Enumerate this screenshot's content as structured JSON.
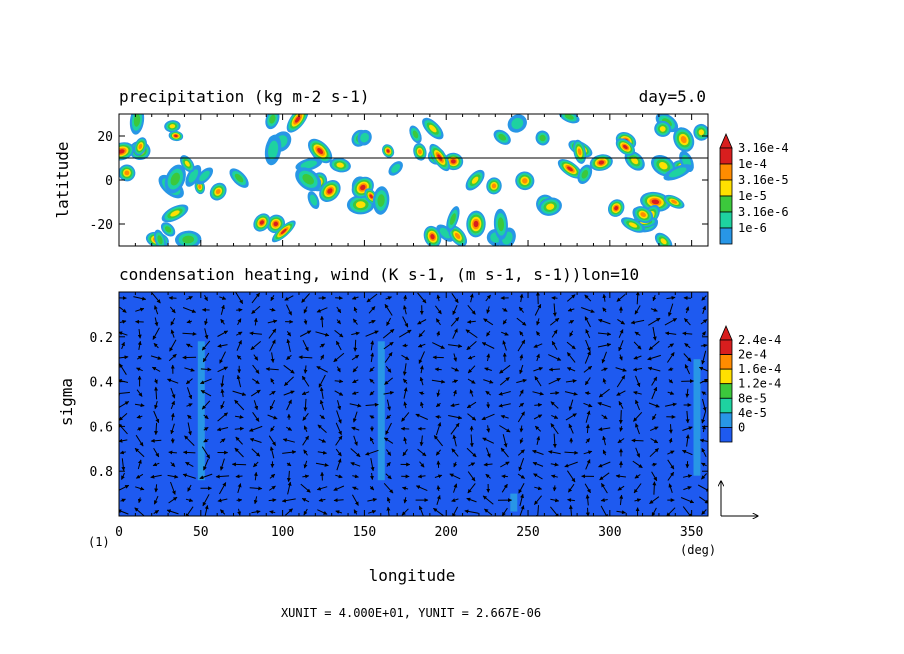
{
  "chart_data": [
    {
      "type": "heatmap",
      "title": "precipitation (kg m-2 s-1)",
      "annotation": "day=5.0",
      "ylabel": "latitude",
      "xlim": [
        0,
        360
      ],
      "ylim": [
        -30,
        30
      ],
      "yticks": [
        20,
        0,
        -20
      ],
      "reference_line_latitude": 10,
      "colorbar": {
        "scale": "log",
        "labels": [
          "3.16e-4",
          "1e-4",
          "3.16e-5",
          "1e-5",
          "3.16e-6",
          "1e-6"
        ],
        "colors": [
          "#d81e1e",
          "#ff8c00",
          "#ffe000",
          "#3cc83c",
          "#1ed2a0",
          "#2896e6"
        ]
      },
      "field_description": "scattered patchy precipitation blobs between 30S and 30N"
    },
    {
      "type": "heatmap",
      "title": "condensation heating, wind (K s-1, (m s-1, s-1))lon=10",
      "xlabel": "longitude",
      "ylabel": "sigma",
      "xlim": [
        0,
        360
      ],
      "xticks": [
        0,
        50,
        100,
        150,
        200,
        250,
        300,
        350
      ],
      "ylim": [
        1,
        0
      ],
      "yticks": [
        0.2,
        0.4,
        0.6,
        0.8
      ],
      "xunit_label": "(deg)",
      "yunit_label": "(1)",
      "colorbar": {
        "labels": [
          "2.4e-4",
          "2e-4",
          "1.6e-4",
          "1.2e-4",
          "8e-5",
          "4e-5",
          "0"
        ],
        "colors": [
          "#d81e1e",
          "#ff8c00",
          "#ffe000",
          "#3cc83c",
          "#1ed2a0",
          "#2896e6",
          "#1e5af0"
        ]
      },
      "background_level": "0",
      "heating_columns": [
        {
          "lon": 50,
          "sigma_top": 0.22,
          "sigma_bottom": 0.84
        },
        {
          "lon": 160,
          "sigma_top": 0.22,
          "sigma_bottom": 0.84
        },
        {
          "lon": 241,
          "sigma_top": 0.9,
          "sigma_bottom": 0.98
        },
        {
          "lon": 353,
          "sigma_top": 0.3,
          "sigma_bottom": 0.82
        }
      ],
      "vector_field": "wind arrows on a regular longitude-sigma grid",
      "reference_vector_unit": {
        "x": "4.000E+01",
        "y": "2.667E-06"
      }
    }
  ],
  "footer": "XUNIT = 4.000E+01, YUNIT = 2.667E-06"
}
